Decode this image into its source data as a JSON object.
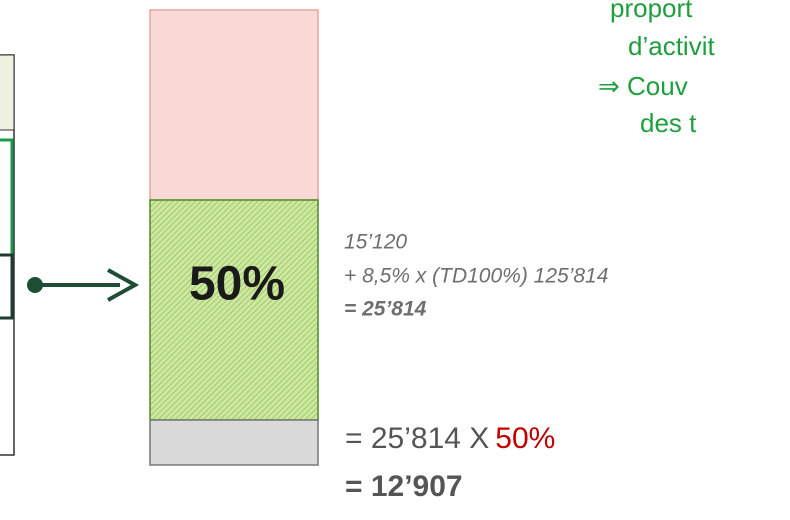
{
  "center_bar": {
    "label": "50%"
  },
  "notes_green": [
    "proport",
    "d’activit",
    "⇒ Couv",
    "des t"
  ],
  "formula": {
    "line1": "15’120",
    "line2": "+ 8,5% x (TD100%) 125’814",
    "line3": "= 25’814"
  },
  "result": {
    "prefix": "= 25’814 X",
    "rate": "50%",
    "total": "= 12’907"
  }
}
